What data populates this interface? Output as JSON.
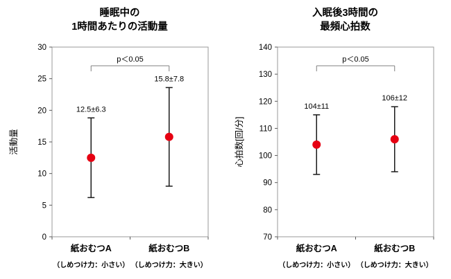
{
  "chart_data": [
    {
      "type": "point-errorbar",
      "title_line1": "睡眠中の",
      "title_line2": "1時間あたりの活動量",
      "ylabel": "活動量",
      "ylim": [
        0,
        30
      ],
      "ytick_step": 5,
      "categories": [
        "紙おむつA",
        "紙おむつB"
      ],
      "sublabels": [
        "（しめつけ力：小さい）",
        "（しめつけ力：大きい）"
      ],
      "means": [
        12.5,
        15.8
      ],
      "errors": [
        6.3,
        7.8
      ],
      "point_labels": [
        "12.5±6.3",
        "15.8±7.8"
      ],
      "significance": "p＜0.05",
      "point_color": "#e60012",
      "errorbar_color": "#1a1a1a",
      "bracket_color": "#7f7f7f",
      "border_color": "#9a9a9a",
      "legend": "none",
      "grid": "off"
    },
    {
      "type": "point-errorbar",
      "title_line1": "入眠後3時間の",
      "title_line2": "最頻心拍数",
      "ylabel": "心拍数[回/分]",
      "ylim": [
        70,
        140
      ],
      "ytick_step": 10,
      "categories": [
        "紙おむつA",
        "紙おむつB"
      ],
      "sublabels": [
        "（しめつけ力：小さい）",
        "（しめつけ力：大きい）"
      ],
      "means": [
        104,
        106
      ],
      "errors": [
        11,
        12
      ],
      "point_labels": [
        "104±11",
        "106±12"
      ],
      "significance": "p＜0.05",
      "point_color": "#e60012",
      "errorbar_color": "#1a1a1a",
      "bracket_color": "#7f7f7f",
      "border_color": "#9a9a9a",
      "legend": "none",
      "grid": "off"
    }
  ]
}
